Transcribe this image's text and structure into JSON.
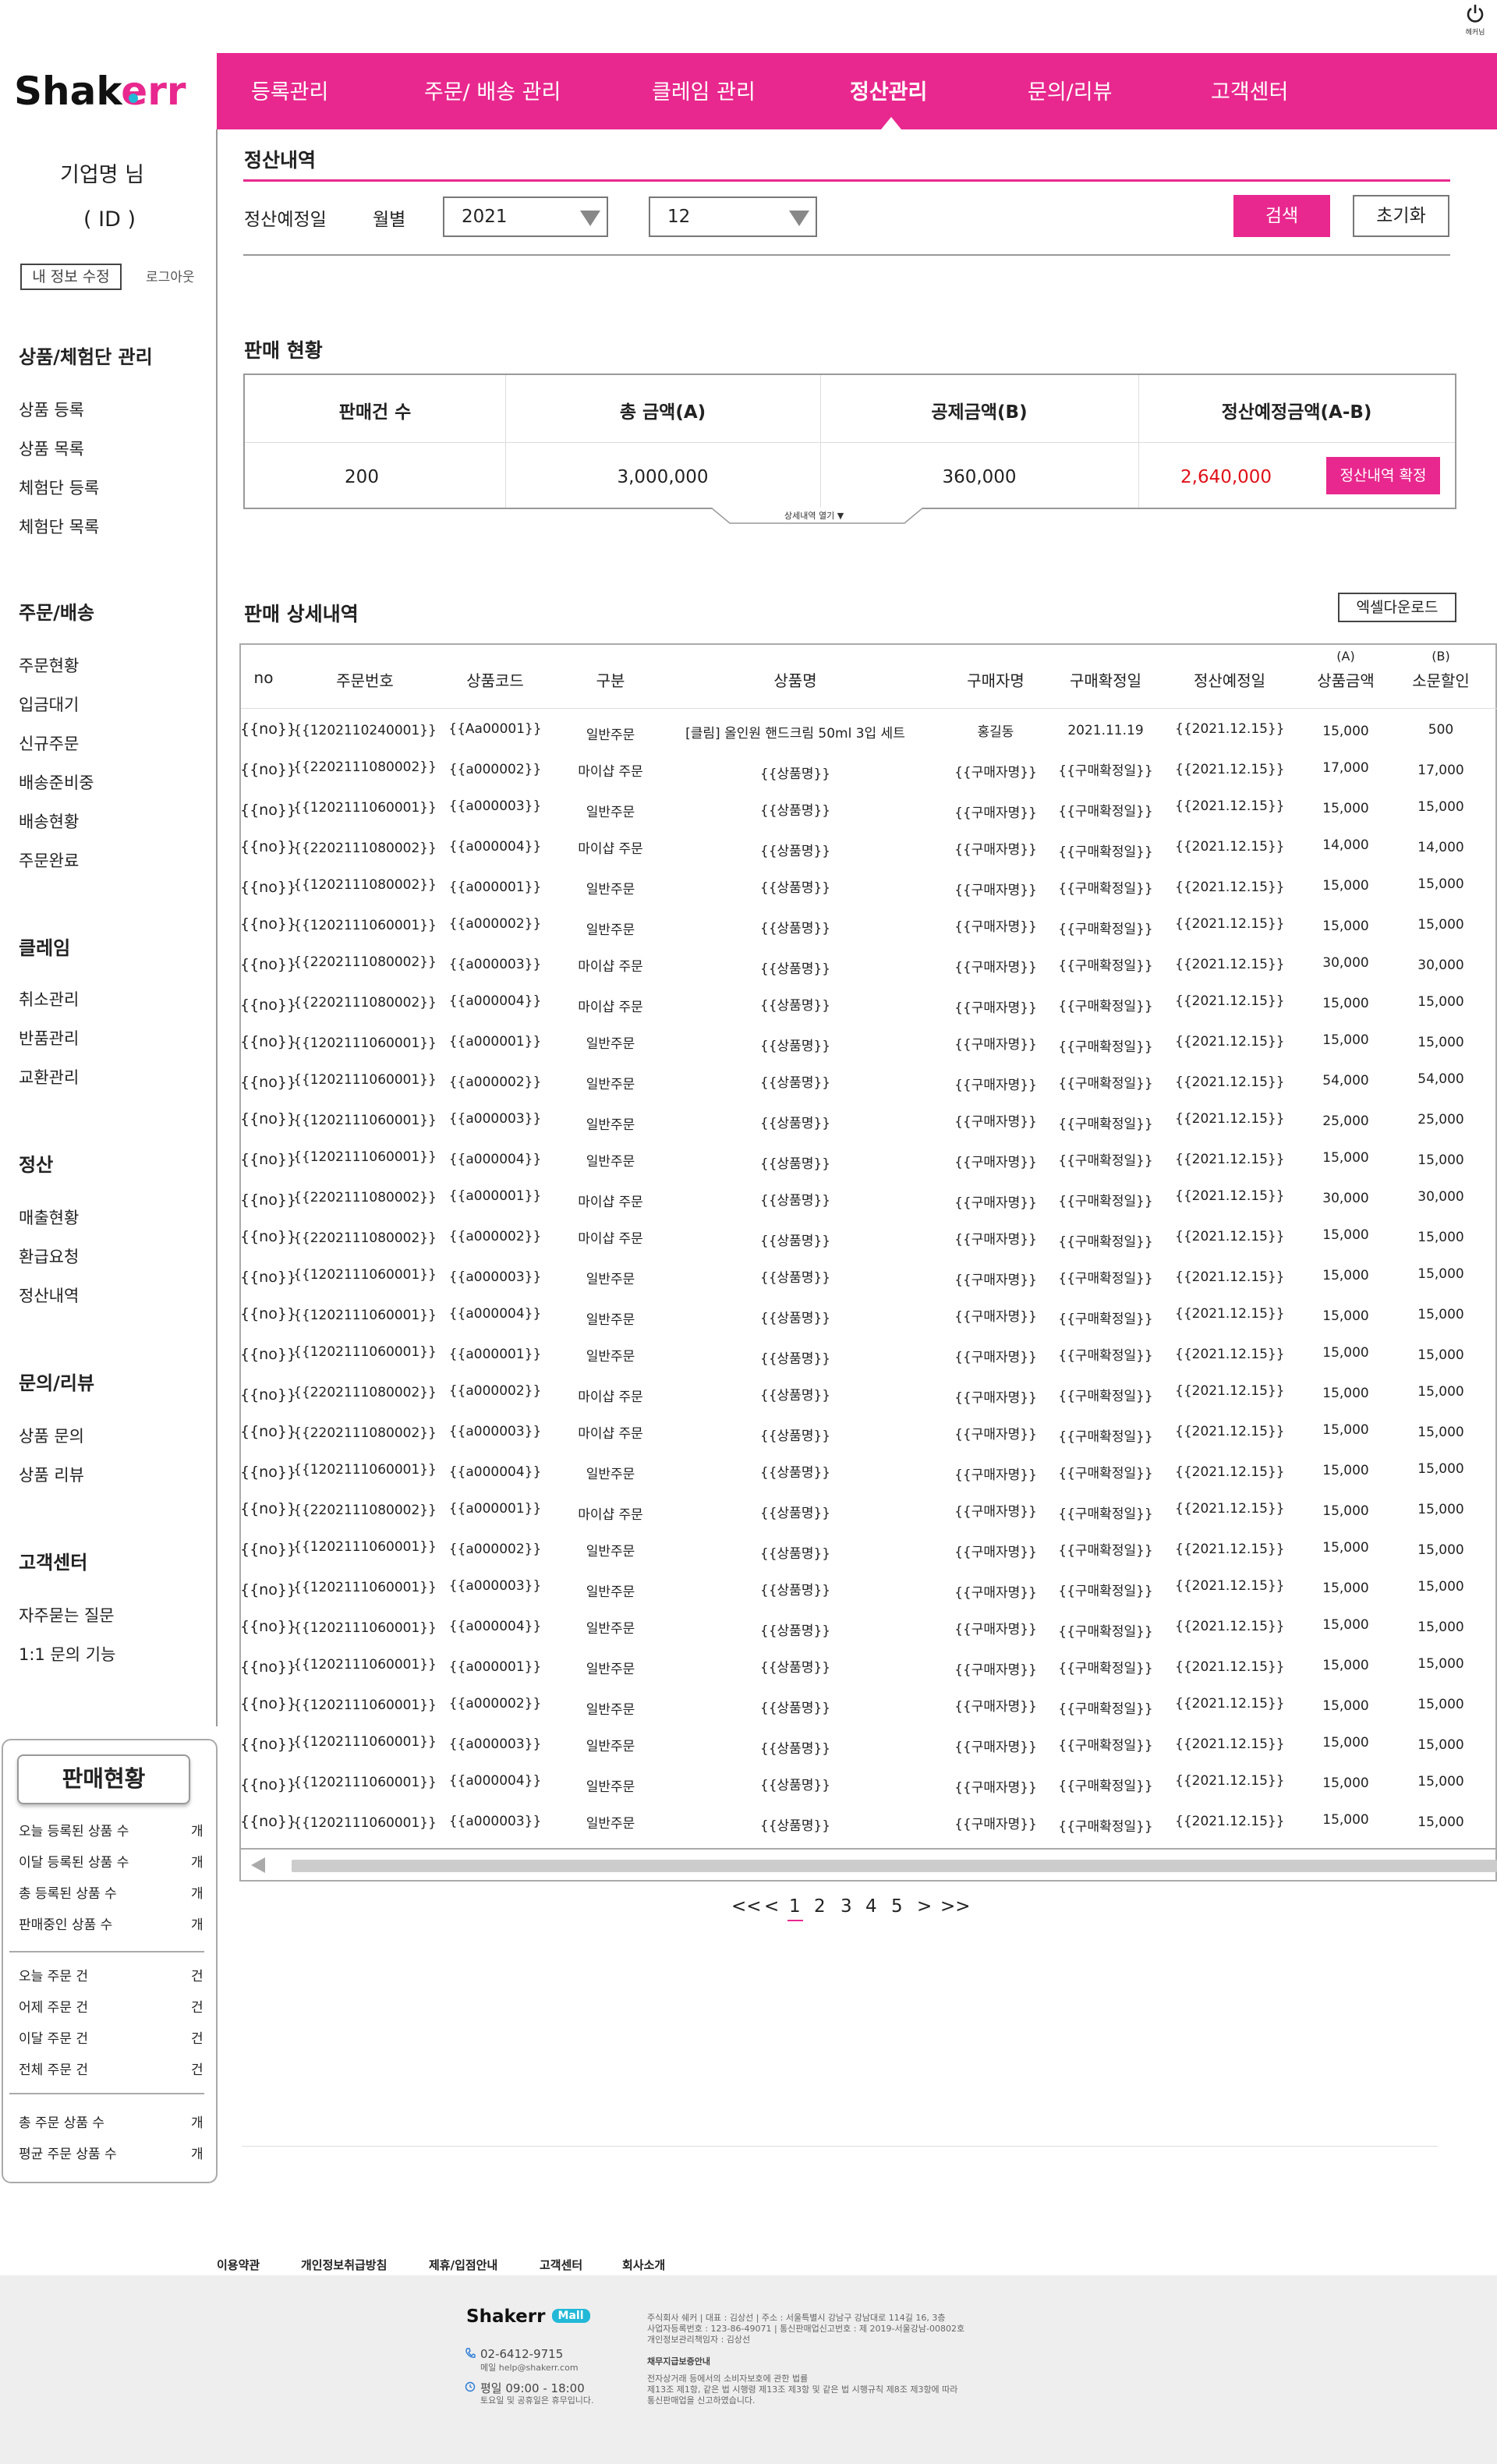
{
  "header": {
    "logout_label": "헤커님",
    "logo_text": "Shakerr",
    "nav": [
      "등록관리",
      "주문/ 배송 관리",
      "클레임 관리",
      "정산관리",
      "문의/리뷰",
      "고객센터"
    ]
  },
  "sidebar": {
    "company": "기업명  님",
    "id": "( ID )",
    "edit_label": "내 정보 수정",
    "logout_label": "로그아웃",
    "sections": [
      {
        "title": "상품/체험단 관리",
        "items": [
          "상품 등록",
          "상품 목록",
          "체험단 등록",
          "체험단 목록"
        ]
      },
      {
        "title": "주문/배송",
        "items": [
          "주문현황",
          "입금대기",
          "신규주문",
          "배송준비중",
          "배송현황",
          "주문완료"
        ]
      },
      {
        "title": "클레임",
        "items": [
          "취소관리",
          "반품관리",
          "교환관리"
        ]
      },
      {
        "title": "정산",
        "items": [
          "매출현황",
          "환급요청",
          "정산내역"
        ]
      },
      {
        "title": "문의/리뷰",
        "items": [
          "상품 문의",
          "상품 리뷰"
        ]
      },
      {
        "title": "고객센터",
        "items": [
          "자주묻는 질문",
          "1:1 문의 기능"
        ]
      }
    ],
    "sales_box": {
      "title": "판매현황",
      "group1": [
        {
          "label": "오늘 등록된 상품 수",
          "unit": "개"
        },
        {
          "label": "이달 등록된 상품 수",
          "unit": "개"
        },
        {
          "label": "총 등록된 상품 수",
          "unit": "개"
        },
        {
          "label": "판매중인 상품 수",
          "unit": "개"
        }
      ],
      "group2": [
        {
          "label": "오늘 주문 건",
          "unit": "건"
        },
        {
          "label": "어제 주문 건",
          "unit": "건"
        },
        {
          "label": "이달 주문 건",
          "unit": "건"
        },
        {
          "label": "전체 주문 건",
          "unit": "건"
        }
      ],
      "group3": [
        {
          "label": "총 주문 상품 수",
          "unit": "개"
        },
        {
          "label": "평균 주문 상품 수",
          "unit": "개"
        }
      ]
    }
  },
  "main": {
    "title": "정산내역",
    "filter": {
      "label": "정산예정일",
      "period_label": "월별",
      "year": "2021",
      "month": "12",
      "search_label": "검색",
      "reset_label": "초기화"
    },
    "summary": {
      "title": "판매 현황",
      "headers": [
        "판매건 수",
        "총 금액(A)",
        "공제금액(B)",
        "정산예정금액(A-B)"
      ],
      "values": [
        "200",
        "3,000,000",
        "360,000",
        "2,640,000"
      ],
      "confirm_label": "정산내역 확정",
      "open_label": "상세내역 열기 ▼",
      "highlight_color": "#e8288e",
      "amount_color": "#e0101a"
    },
    "detail": {
      "title": "판매 상세내역",
      "excel_label": "엑셀다운로드",
      "headers": [
        "no",
        "주문번호",
        "상품코드",
        "구분",
        "상품명",
        "구매자명",
        "구매확정일",
        "정산예정일",
        "상품금액",
        "소문할인"
      ],
      "header_sub": [
        "(A)",
        "(B)"
      ],
      "rows": [
        [
          "{{no}}",
          "{{1202110240001}}",
          "{{Aa00001}}",
          "일반주문",
          "[클림] 올인원 핸드크림 50ml 3입 세트",
          "홍길동",
          "2021.11.19",
          "{{2021.12.15}}",
          "15,000",
          "500"
        ],
        [
          "{{no}}",
          "{{2202111080002}}",
          "{{a000002}}",
          "마이샵 주문",
          "{{상품명}}",
          "{{구매자명}}",
          "{{구매확정일}}",
          "{{2021.12.15}}",
          "17,000",
          "17,000"
        ],
        [
          "{{no}}",
          "{{1202111060001}}",
          "{{a000003}}",
          "일반주문",
          "{{상품명}}",
          "{{구매자명}}",
          "{{구매확정일}}",
          "{{2021.12.15}}",
          "15,000",
          "15,000"
        ],
        [
          "{{no}}",
          "{{2202111080002}}",
          "{{a000004}}",
          "마이샵 주문",
          "{{상품명}}",
          "{{구매자명}}",
          "{{구매확정일}}",
          "{{2021.12.15}}",
          "14,000",
          "14,000"
        ],
        [
          "{{no}}",
          "{{1202111080002}}",
          "{{a000001}}",
          "일반주문",
          "{{상품명}}",
          "{{구매자명}}",
          "{{구매확정일}}",
          "{{2021.12.15}}",
          "15,000",
          "15,000"
        ],
        [
          "{{no}}",
          "{{1202111060001}}",
          "{{a000002}}",
          "일반주문",
          "{{상품명}}",
          "{{구매자명}}",
          "{{구매확정일}}",
          "{{2021.12.15}}",
          "15,000",
          "15,000"
        ],
        [
          "{{no}}",
          "{{2202111080002}}",
          "{{a000003}}",
          "마이샵 주문",
          "{{상품명}}",
          "{{구매자명}}",
          "{{구매확정일}}",
          "{{2021.12.15}}",
          "30,000",
          "30,000"
        ],
        [
          "{{no}}",
          "{{2202111080002}}",
          "{{a000004}}",
          "마이샵 주문",
          "{{상품명}}",
          "{{구매자명}}",
          "{{구매확정일}}",
          "{{2021.12.15}}",
          "15,000",
          "15,000"
        ],
        [
          "{{no}}",
          "{{1202111060001}}",
          "{{a000001}}",
          "일반주문",
          "{{상품명}}",
          "{{구매자명}}",
          "{{구매확정일}}",
          "{{2021.12.15}}",
          "15,000",
          "15,000"
        ],
        [
          "{{no}}",
          "{{1202111060001}}",
          "{{a000002}}",
          "일반주문",
          "{{상품명}}",
          "{{구매자명}}",
          "{{구매확정일}}",
          "{{2021.12.15}}",
          "54,000",
          "54,000"
        ],
        [
          "{{no}}",
          "{{1202111060001}}",
          "{{a000003}}",
          "일반주문",
          "{{상품명}}",
          "{{구매자명}}",
          "{{구매확정일}}",
          "{{2021.12.15}}",
          "25,000",
          "25,000"
        ],
        [
          "{{no}}",
          "{{1202111060001}}",
          "{{a000004}}",
          "일반주문",
          "{{상품명}}",
          "{{구매자명}}",
          "{{구매확정일}}",
          "{{2021.12.15}}",
          "15,000",
          "15,000"
        ],
        [
          "{{no}}",
          "{{2202111080002}}",
          "{{a000001}}",
          "마이샵 주문",
          "{{상품명}}",
          "{{구매자명}}",
          "{{구매확정일}}",
          "{{2021.12.15}}",
          "30,000",
          "30,000"
        ],
        [
          "{{no}}",
          "{{2202111080002}}",
          "{{a000002}}",
          "마이샵 주문",
          "{{상품명}}",
          "{{구매자명}}",
          "{{구매확정일}}",
          "{{2021.12.15}}",
          "15,000",
          "15,000"
        ],
        [
          "{{no}}",
          "{{1202111060001}}",
          "{{a000003}}",
          "일반주문",
          "{{상품명}}",
          "{{구매자명}}",
          "{{구매확정일}}",
          "{{2021.12.15}}",
          "15,000",
          "15,000"
        ],
        [
          "{{no}}",
          "{{1202111060001}}",
          "{{a000004}}",
          "일반주문",
          "{{상품명}}",
          "{{구매자명}}",
          "{{구매확정일}}",
          "{{2021.12.15}}",
          "15,000",
          "15,000"
        ],
        [
          "{{no}}",
          "{{1202111060001}}",
          "{{a000001}}",
          "일반주문",
          "{{상품명}}",
          "{{구매자명}}",
          "{{구매확정일}}",
          "{{2021.12.15}}",
          "15,000",
          "15,000"
        ],
        [
          "{{no}}",
          "{{2202111080002}}",
          "{{a000002}}",
          "마이샵 주문",
          "{{상품명}}",
          "{{구매자명}}",
          "{{구매확정일}}",
          "{{2021.12.15}}",
          "15,000",
          "15,000"
        ],
        [
          "{{no}}",
          "{{2202111080002}}",
          "{{a000003}}",
          "마이샵 주문",
          "{{상품명}}",
          "{{구매자명}}",
          "{{구매확정일}}",
          "{{2021.12.15}}",
          "15,000",
          "15,000"
        ],
        [
          "{{no}}",
          "{{1202111060001}}",
          "{{a000004}}",
          "일반주문",
          "{{상품명}}",
          "{{구매자명}}",
          "{{구매확정일}}",
          "{{2021.12.15}}",
          "15,000",
          "15,000"
        ],
        [
          "{{no}}",
          "{{2202111080002}}",
          "{{a000001}}",
          "마이샵 주문",
          "{{상품명}}",
          "{{구매자명}}",
          "{{구매확정일}}",
          "{{2021.12.15}}",
          "15,000",
          "15,000"
        ],
        [
          "{{no}}",
          "{{1202111060001}}",
          "{{a000002}}",
          "일반주문",
          "{{상품명}}",
          "{{구매자명}}",
          "{{구매확정일}}",
          "{{2021.12.15}}",
          "15,000",
          "15,000"
        ],
        [
          "{{no}}",
          "{{1202111060001}}",
          "{{a000003}}",
          "일반주문",
          "{{상품명}}",
          "{{구매자명}}",
          "{{구매확정일}}",
          "{{2021.12.15}}",
          "15,000",
          "15,000"
        ],
        [
          "{{no}}",
          "{{1202111060001}}",
          "{{a000004}}",
          "일반주문",
          "{{상품명}}",
          "{{구매자명}}",
          "{{구매확정일}}",
          "{{2021.12.15}}",
          "15,000",
          "15,000"
        ],
        [
          "{{no}}",
          "{{1202111060001}}",
          "{{a000001}}",
          "일반주문",
          "{{상품명}}",
          "{{구매자명}}",
          "{{구매확정일}}",
          "{{2021.12.15}}",
          "15,000",
          "15,000"
        ],
        [
          "{{no}}",
          "{{1202111060001}}",
          "{{a000002}}",
          "일반주문",
          "{{상품명}}",
          "{{구매자명}}",
          "{{구매확정일}}",
          "{{2021.12.15}}",
          "15,000",
          "15,000"
        ],
        [
          "{{no}}",
          "{{1202111060001}}",
          "{{a000003}}",
          "일반주문",
          "{{상품명}}",
          "{{구매자명}}",
          "{{구매확정일}}",
          "{{2021.12.15}}",
          "15,000",
          "15,000"
        ],
        [
          "{{no}}",
          "{{1202111060001}}",
          "{{a000004}}",
          "일반주문",
          "{{상품명}}",
          "{{구매자명}}",
          "{{구매확정일}}",
          "{{2021.12.15}}",
          "15,000",
          "15,000"
        ],
        [
          "{{no}}",
          "{{1202111060001}}",
          "{{a000003}}",
          "일반주문",
          "{{상품명}}",
          "{{구매자명}}",
          "{{구매확정일}}",
          "{{2021.12.15}}",
          "15,000",
          "15,000"
        ]
      ]
    },
    "pagination": [
      "<<",
      "<",
      "1",
      "2",
      "3",
      "4",
      "5",
      ">",
      ">>"
    ],
    "current_page": "1"
  },
  "footer": {
    "links": [
      "이용약관",
      "개인정보취급방침",
      "제휴/입점안내",
      "고객센터",
      "회사소개"
    ],
    "logo_text": "Shakerr",
    "logo_badge": "Mall",
    "phone": "02-6412-9715",
    "email": "메일 help@shakerr.com",
    "hours": "평일 09:00 - 18:00",
    "hours_note": "토요일 및 공휴일은 휴무입니다.",
    "company_lines": [
      "주식회사 쉐커 | 대표 : 김상선 | 주소 : 서울특별시 강남구 강남대로 114길 16, 3층",
      "사업자등록번호 : 123-86-49071 | 통신판매업신고번호 : 제 2019-서울강남-00802호",
      "개인정보관리책임자 : 김상선"
    ],
    "notice_title": "채무지급보증안내",
    "notice_lines": [
      "전자상거래 등에서의 소비자보호에 관한 법률",
      "제13조 제1항, 같은 법 시행령 제13조 제3항 및 같은 법 시행규칙 제8조 제3항에 따라",
      "통신판매업을 신고하였습니다."
    ]
  }
}
